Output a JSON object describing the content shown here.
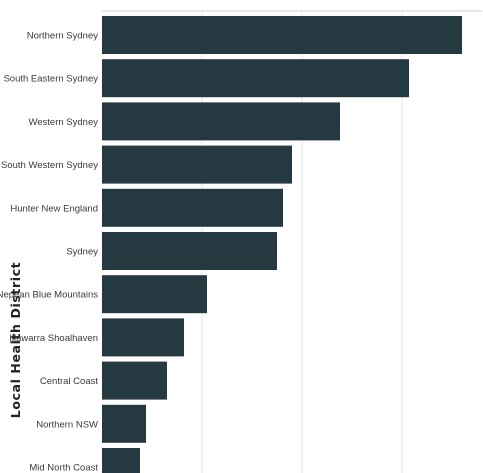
{
  "chart_data": {
    "type": "bar",
    "orientation": "horizontal",
    "ylabel": "Local Health District",
    "categories": [
      "Northern Sydney",
      "South Eastern Sydney",
      "Western Sydney",
      "South Western Sydney",
      "Hunter New England",
      "Sydney",
      "Nepean Blue Mountains",
      "Illawarra Shoalhaven",
      "Central Coast",
      "Northern NSW",
      "Mid North Coast"
    ],
    "values": [
      3600,
      3070,
      2380,
      1900,
      1810,
      1750,
      1050,
      820,
      650,
      440,
      380
    ],
    "xlim": [
      0,
      3800
    ],
    "grid": true,
    "colors": {
      "bar": "#253941",
      "grid": "#e6e6e6",
      "axis": "#d0d0d0"
    }
  }
}
